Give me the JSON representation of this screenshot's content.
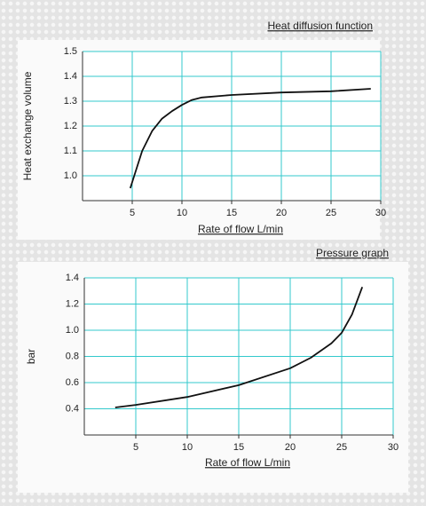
{
  "chart_data": [
    {
      "type": "line",
      "title": "Heat diffusion function",
      "ylabel": "Heat exchange volume",
      "xlabel": "Rate of flow L/min",
      "x": [
        4.8,
        6,
        7,
        8,
        9,
        10,
        11,
        12,
        15,
        20,
        25,
        29
      ],
      "values": [
        0.95,
        1.1,
        1.18,
        1.23,
        1.26,
        1.285,
        1.305,
        1.315,
        1.325,
        1.335,
        1.34,
        1.35
      ],
      "color": "#111111",
      "xlim": [
        0,
        30
      ],
      "xticks": [
        5,
        10,
        15,
        20,
        25,
        30
      ],
      "ylim": [
        0.9,
        1.5
      ],
      "yticks": [
        {
          "value": 1,
          "label": "1.0"
        },
        1.1,
        1.2,
        1.3,
        1.4,
        1.5
      ],
      "grid": true
    },
    {
      "type": "line",
      "title": "Pressure graph",
      "ylabel": "bar",
      "xlabel": "Rate of flow L/min",
      "x": [
        3,
        5,
        10,
        15,
        20,
        22,
        24,
        25,
        26,
        27
      ],
      "values": [
        0.41,
        0.43,
        0.49,
        0.58,
        0.71,
        0.79,
        0.9,
        0.98,
        1.12,
        1.33
      ],
      "color": "#111111",
      "xlim": [
        0,
        30
      ],
      "xticks": [
        5,
        10,
        15,
        20,
        25,
        30
      ],
      "ylim": [
        0.2,
        1.4
      ],
      "yticks": [
        0.4,
        0.6,
        0.8,
        {
          "value": 1,
          "label": "1.0"
        },
        1.2,
        1.4
      ],
      "grid": true
    }
  ]
}
